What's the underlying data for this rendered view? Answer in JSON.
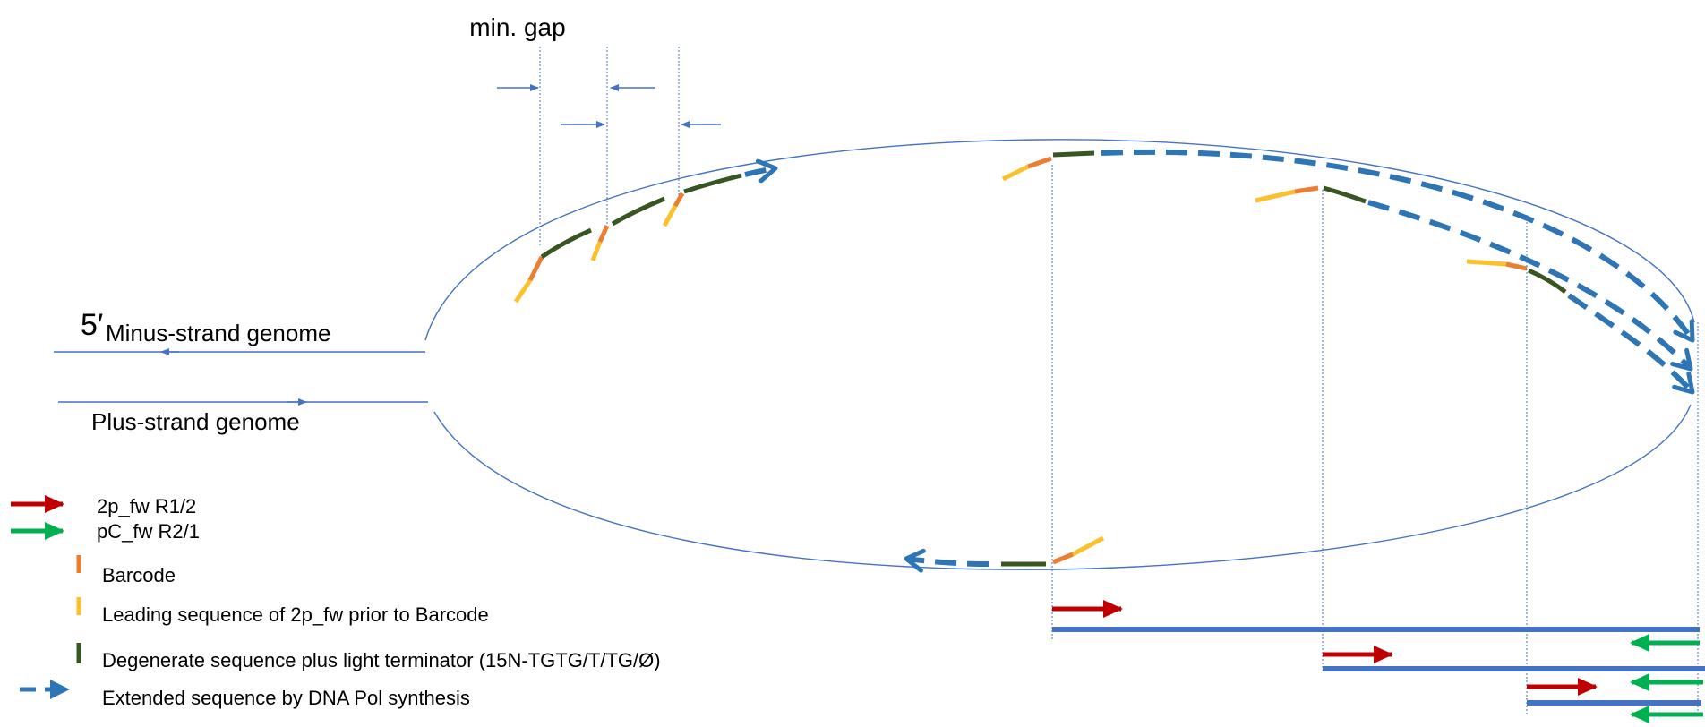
{
  "labels": {
    "min_gap": "min. gap",
    "five_prime": "5′",
    "minus_strand": "Minus-strand genome",
    "plus_strand": "Plus-strand genome"
  },
  "legend": [
    {
      "label": "2p_fw R1/2",
      "icon": "red-arrow-icon",
      "color": "#c00000"
    },
    {
      "label": "pC_fw R2/1",
      "icon": "green-arrow-icon",
      "color": "#00b050"
    },
    {
      "label": "Barcode",
      "icon": "barcode-swatch-icon",
      "color": "#ed7d31"
    },
    {
      "label": "Leading sequence of 2p_fw prior to Barcode",
      "icon": "leading-sequence-swatch-icon",
      "color": "#fbc02d"
    },
    {
      "label": "Degenerate sequence plus light terminator (15N-TGTG/T/TG/Ø)",
      "icon": "degenerate-sequence-swatch-icon",
      "color": "#375623"
    },
    {
      "label": "Extended sequence by DNA Pol synthesis",
      "icon": "dashed-arrow-icon",
      "color": "#2e75b6"
    }
  ],
  "colors": {
    "strand": "#4472c4",
    "extension": "#2e75b6",
    "barcode": "#ed7d31",
    "leading": "#fbc02d",
    "degenerate": "#375623",
    "primer_2p": "#c00000",
    "primer_pc": "#00b050"
  }
}
